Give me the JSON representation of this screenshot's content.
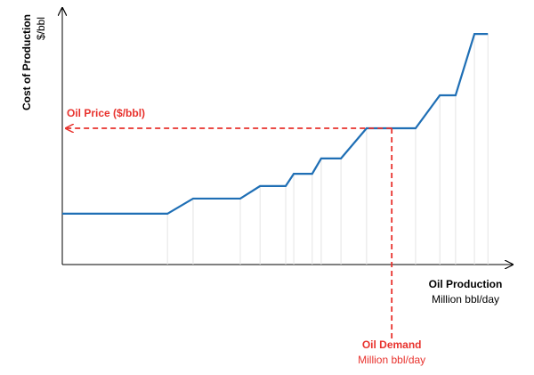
{
  "chart_data": {
    "type": "line",
    "y_label": "Cost of Production",
    "y_unit": "$/bbl",
    "x_label": "Oil Production",
    "x_unit": "Million bbl/day",
    "xlim": [
      0,
      100
    ],
    "ylim": [
      0,
      100
    ],
    "x": [
      0,
      23.4,
      29.1,
      39.6,
      44.0,
      49.7,
      51.5,
      55.6,
      57.6,
      62.0,
      67.7,
      78.6,
      84.0,
      87.5,
      91.7,
      94.7
    ],
    "series": [
      {
        "color": "#1f6fb5",
        "values": [
          19.9,
          19.9,
          25.8,
          25.8,
          30.7,
          30.7,
          35.5,
          35.5,
          41.5,
          41.5,
          53.3,
          53.3,
          66.2,
          66.2,
          90.2,
          90.2
        ]
      }
    ],
    "price": {
      "label": "Oil Price ($/bbl)",
      "value": 53.3,
      "color": "#e8322d"
    },
    "demand": {
      "label": "Oil Demand",
      "unit": "Million bbl/day",
      "value": 73.3,
      "color": "#e8322d"
    }
  }
}
